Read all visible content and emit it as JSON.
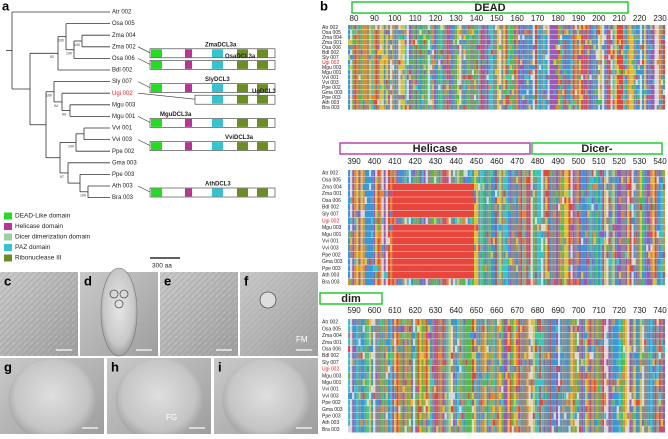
{
  "panel_labels": [
    "a",
    "b",
    "c",
    "d",
    "e",
    "f",
    "g",
    "h",
    "i"
  ],
  "tree": {
    "taxa": [
      "Atr 002",
      "Osa 005",
      "Zma 004",
      "Zma 002",
      "Osa 006",
      "Bdl 002",
      "Sly 007",
      "Ugi 002",
      "Mgu 003",
      "Mgu 001",
      "Vvi 001",
      "Vvi 003",
      "Ppe 002",
      "Gma 003",
      "Ppe 003",
      "Ath 003",
      "Bra 003"
    ],
    "bootstrap": [
      "92",
      "100",
      "100",
      "100",
      "94",
      "99",
      "100",
      "100",
      "97",
      "100"
    ]
  },
  "domains": {
    "architectures": [
      "ZmaDCL3a",
      "OsaDCL3a",
      "SlyDCL3",
      "UgDCL3",
      "MguDCL3a",
      "VviDCL3a",
      "AthDCL3"
    ],
    "legend": [
      "DEAD-Like domain",
      "Helicase domain",
      "Dicer dimerization domain",
      "PAZ domain",
      "Ribonuclease III"
    ],
    "scale": "300 aa"
  },
  "alignment": {
    "sequences": [
      "Atr 002",
      "Osa 005",
      "Zma 004",
      "Zma 001",
      "Osa 006",
      "Bdl 002",
      "Sly 007",
      "Ugi 002",
      "Mgu 003",
      "Mgu 001",
      "Vvi 001",
      "Vvi 003",
      "Ppe 002",
      "Gma 003",
      "Ppe 003",
      "Ath 003",
      "Bra 003"
    ],
    "blocks": [
      {
        "regions": [
          "DEAD"
        ],
        "positions": [
          80,
          90,
          100,
          110,
          120,
          130,
          140,
          150,
          160,
          170,
          180,
          190,
          200,
          210,
          220,
          230
        ]
      },
      {
        "regions": [
          "Helicase",
          "Dicer-"
        ],
        "positions": [
          390,
          400,
          410,
          420,
          430,
          440,
          450,
          460,
          470,
          480,
          490,
          500,
          510,
          520,
          530,
          540
        ]
      },
      {
        "regions": [
          "dim"
        ],
        "positions": [
          590,
          600,
          610,
          620,
          630,
          640,
          650,
          660,
          670,
          680,
          690,
          700,
          710,
          720,
          730,
          740
        ]
      }
    ]
  },
  "annotations": [
    "FM",
    "FG"
  ]
}
